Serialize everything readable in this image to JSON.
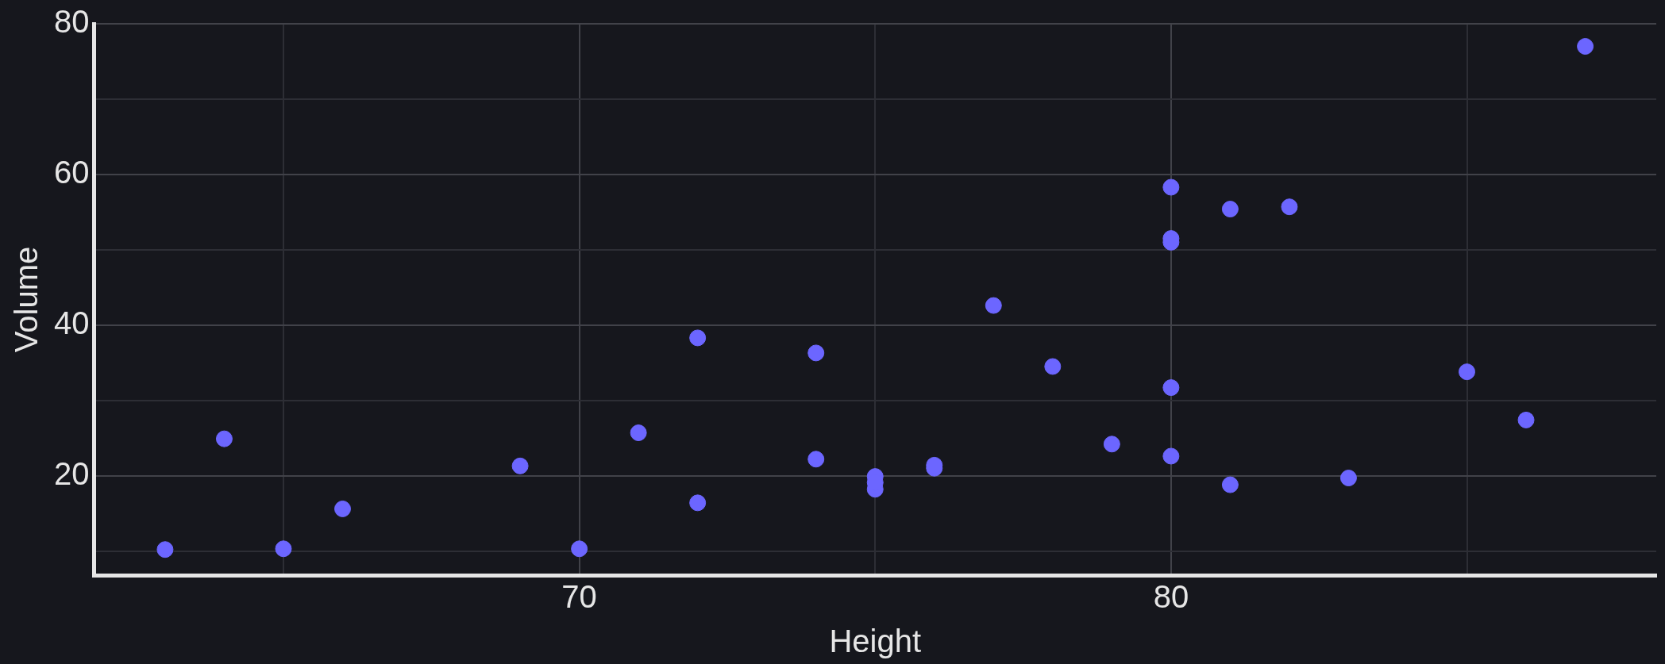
{
  "chart_data": {
    "type": "scatter",
    "xlabel": "Height",
    "ylabel": "Volume",
    "x": [
      70,
      65,
      63,
      72,
      81,
      83,
      66,
      75,
      80,
      75,
      79,
      76,
      76,
      69,
      75,
      74,
      85,
      86,
      71,
      64,
      78,
      80,
      74,
      72,
      77,
      81,
      82,
      80,
      80,
      80,
      87
    ],
    "series": [
      {
        "color": "#6c66ff",
        "values": [
          10.3,
          10.3,
          10.2,
          16.4,
          18.8,
          19.7,
          15.6,
          18.2,
          22.6,
          19.9,
          24.2,
          21.0,
          21.4,
          21.3,
          19.1,
          22.2,
          33.8,
          27.4,
          25.7,
          24.9,
          34.5,
          31.7,
          36.3,
          38.3,
          42.6,
          55.4,
          55.7,
          58.3,
          51.5,
          51.0,
          77.0
        ]
      }
    ],
    "xlim": [
      61.8,
      88.2
    ],
    "ylim": [
      6.8,
      80
    ],
    "xticks": [
      {
        "value": 65,
        "label": null
      },
      70,
      {
        "value": 75,
        "label": null
      },
      80,
      {
        "value": 85,
        "label": null
      }
    ],
    "yticks": [
      {
        "value": 10,
        "label": null
      },
      20,
      {
        "value": 30,
        "label": null
      },
      40,
      {
        "value": 50,
        "label": null
      },
      60,
      {
        "value": 70,
        "label": null
      },
      80
    ],
    "grid": true,
    "marker": "circle",
    "legend": false
  }
}
